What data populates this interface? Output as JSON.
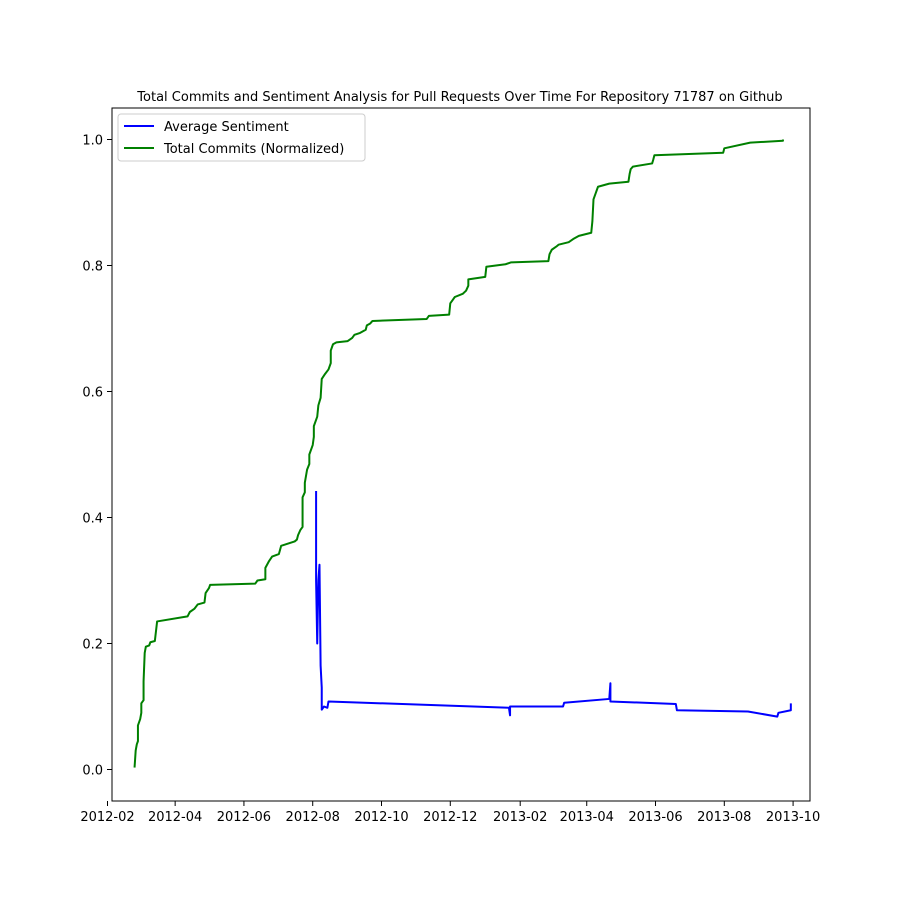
{
  "chart_data": {
    "type": "line",
    "title": "Total Commits and Sentiment Analysis for Pull Requests Over Time For Repository 71787 on Github",
    "xlabel": "",
    "ylabel": "",
    "x_scale": "date",
    "xlim": [
      "2012-02-05",
      "2013-10-16"
    ],
    "ylim": [
      -0.05,
      1.05
    ],
    "x_ticks": [
      "2012-02",
      "2012-04",
      "2012-06",
      "2012-08",
      "2012-10",
      "2012-12",
      "2013-02",
      "2013-04",
      "2013-06",
      "2013-08",
      "2013-10"
    ],
    "y_ticks": [
      "0.0",
      "0.2",
      "0.4",
      "0.6",
      "0.8",
      "1.0"
    ],
    "grid": false,
    "legend_position": "top-left",
    "series": [
      {
        "name": "Average Sentiment",
        "color": "#0000ff",
        "points": [
          [
            "2012-08-04",
            0.442
          ],
          [
            "2012-08-04",
            0.3
          ],
          [
            "2012-08-05",
            0.2
          ],
          [
            "2012-08-06",
            0.3
          ],
          [
            "2012-08-07",
            0.325
          ],
          [
            "2012-08-08",
            0.165
          ],
          [
            "2012-08-09",
            0.13
          ],
          [
            "2012-08-09",
            0.095
          ],
          [
            "2012-08-11",
            0.1
          ],
          [
            "2012-08-14",
            0.098
          ],
          [
            "2012-08-15",
            0.108
          ],
          [
            "2013-01-22",
            0.098
          ],
          [
            "2013-01-23",
            0.086
          ],
          [
            "2013-01-23",
            0.1
          ],
          [
            "2013-03-11",
            0.1
          ],
          [
            "2013-03-12",
            0.106
          ],
          [
            "2013-04-21",
            0.112
          ],
          [
            "2013-04-22",
            0.137
          ],
          [
            "2013-04-22",
            0.108
          ],
          [
            "2013-06-19",
            0.104
          ],
          [
            "2013-06-20",
            0.094
          ],
          [
            "2013-08-22",
            0.092
          ],
          [
            "2013-09-17",
            0.084
          ],
          [
            "2013-09-18",
            0.09
          ],
          [
            "2013-09-29",
            0.094
          ],
          [
            "2013-09-29",
            0.105
          ]
        ]
      },
      {
        "name": "Total Commits (Normalized)",
        "color": "#008000",
        "points": [
          [
            "2012-02-25",
            0.003
          ],
          [
            "2012-02-26",
            0.03
          ],
          [
            "2012-02-27",
            0.04
          ],
          [
            "2012-02-28",
            0.045
          ],
          [
            "2012-02-28",
            0.07
          ],
          [
            "2012-03-01",
            0.08
          ],
          [
            "2012-03-02",
            0.09
          ],
          [
            "2012-03-02",
            0.105
          ],
          [
            "2012-03-04",
            0.11
          ],
          [
            "2012-03-04",
            0.14
          ],
          [
            "2012-03-05",
            0.185
          ],
          [
            "2012-03-06",
            0.195
          ],
          [
            "2012-03-09",
            0.197
          ],
          [
            "2012-03-10",
            0.202
          ],
          [
            "2012-03-14",
            0.204
          ],
          [
            "2012-03-16",
            0.235
          ],
          [
            "2012-04-12",
            0.243
          ],
          [
            "2012-04-14",
            0.25
          ],
          [
            "2012-04-18",
            0.255
          ],
          [
            "2012-04-21",
            0.262
          ],
          [
            "2012-04-27",
            0.265
          ],
          [
            "2012-04-28",
            0.28
          ],
          [
            "2012-05-01",
            0.288
          ],
          [
            "2012-05-02",
            0.293
          ],
          [
            "2012-06-11",
            0.295
          ],
          [
            "2012-06-13",
            0.3
          ],
          [
            "2012-06-20",
            0.302
          ],
          [
            "2012-06-20",
            0.32
          ],
          [
            "2012-06-23",
            0.33
          ],
          [
            "2012-06-26",
            0.338
          ],
          [
            "2012-07-02",
            0.342
          ],
          [
            "2012-07-04",
            0.355
          ],
          [
            "2012-07-16",
            0.362
          ],
          [
            "2012-07-18",
            0.365
          ],
          [
            "2012-07-19",
            0.372
          ],
          [
            "2012-07-21",
            0.38
          ],
          [
            "2012-07-23",
            0.385
          ],
          [
            "2012-07-23",
            0.432
          ],
          [
            "2012-07-25",
            0.44
          ],
          [
            "2012-07-25",
            0.455
          ],
          [
            "2012-07-27",
            0.476
          ],
          [
            "2012-07-29",
            0.485
          ],
          [
            "2012-07-29",
            0.5
          ],
          [
            "2012-08-01",
            0.515
          ],
          [
            "2012-08-02",
            0.528
          ],
          [
            "2012-08-02",
            0.545
          ],
          [
            "2012-08-05",
            0.56
          ],
          [
            "2012-08-06",
            0.578
          ],
          [
            "2012-08-08",
            0.59
          ],
          [
            "2012-08-09",
            0.62
          ],
          [
            "2012-08-12",
            0.628
          ],
          [
            "2012-08-15",
            0.635
          ],
          [
            "2012-08-17",
            0.645
          ],
          [
            "2012-08-17",
            0.665
          ],
          [
            "2012-08-19",
            0.675
          ],
          [
            "2012-08-22",
            0.678
          ],
          [
            "2012-09-01",
            0.68
          ],
          [
            "2012-09-05",
            0.685
          ],
          [
            "2012-09-07",
            0.69
          ],
          [
            "2012-09-12",
            0.693
          ],
          [
            "2012-09-17",
            0.698
          ],
          [
            "2012-09-18",
            0.705
          ],
          [
            "2012-09-21",
            0.708
          ],
          [
            "2012-09-23",
            0.712
          ],
          [
            "2012-11-10",
            0.715
          ],
          [
            "2012-11-12",
            0.72
          ],
          [
            "2012-11-30",
            0.722
          ],
          [
            "2012-12-01",
            0.74
          ],
          [
            "2012-12-03",
            0.745
          ],
          [
            "2012-12-05",
            0.75
          ],
          [
            "2012-12-12",
            0.755
          ],
          [
            "2012-12-15",
            0.76
          ],
          [
            "2012-12-17",
            0.768
          ],
          [
            "2012-12-17",
            0.778
          ],
          [
            "2013-01-01",
            0.782
          ],
          [
            "2013-01-02",
            0.798
          ],
          [
            "2013-01-19",
            0.802
          ],
          [
            "2013-01-24",
            0.805
          ],
          [
            "2013-02-26",
            0.807
          ],
          [
            "2013-02-27",
            0.818
          ],
          [
            "2013-03-01",
            0.825
          ],
          [
            "2013-03-05",
            0.83
          ],
          [
            "2013-03-07",
            0.833
          ],
          [
            "2013-03-16",
            0.837
          ],
          [
            "2013-03-20",
            0.842
          ],
          [
            "2013-03-25",
            0.847
          ],
          [
            "2013-04-05",
            0.852
          ],
          [
            "2013-04-06",
            0.87
          ],
          [
            "2013-04-07",
            0.905
          ],
          [
            "2013-04-09",
            0.915
          ],
          [
            "2013-04-10",
            0.92
          ],
          [
            "2013-04-11",
            0.925
          ],
          [
            "2013-04-21",
            0.93
          ],
          [
            "2013-05-08",
            0.933
          ],
          [
            "2013-05-09",
            0.945
          ],
          [
            "2013-05-10",
            0.953
          ],
          [
            "2013-05-12",
            0.957
          ],
          [
            "2013-05-29",
            0.962
          ],
          [
            "2013-05-30",
            0.968
          ],
          [
            "2013-05-31",
            0.975
          ],
          [
            "2013-07-31",
            0.979
          ],
          [
            "2013-08-01",
            0.986
          ],
          [
            "2013-08-24",
            0.995
          ],
          [
            "2013-09-22",
            0.998
          ],
          [
            "2013-09-22",
            1.0
          ]
        ]
      }
    ]
  }
}
